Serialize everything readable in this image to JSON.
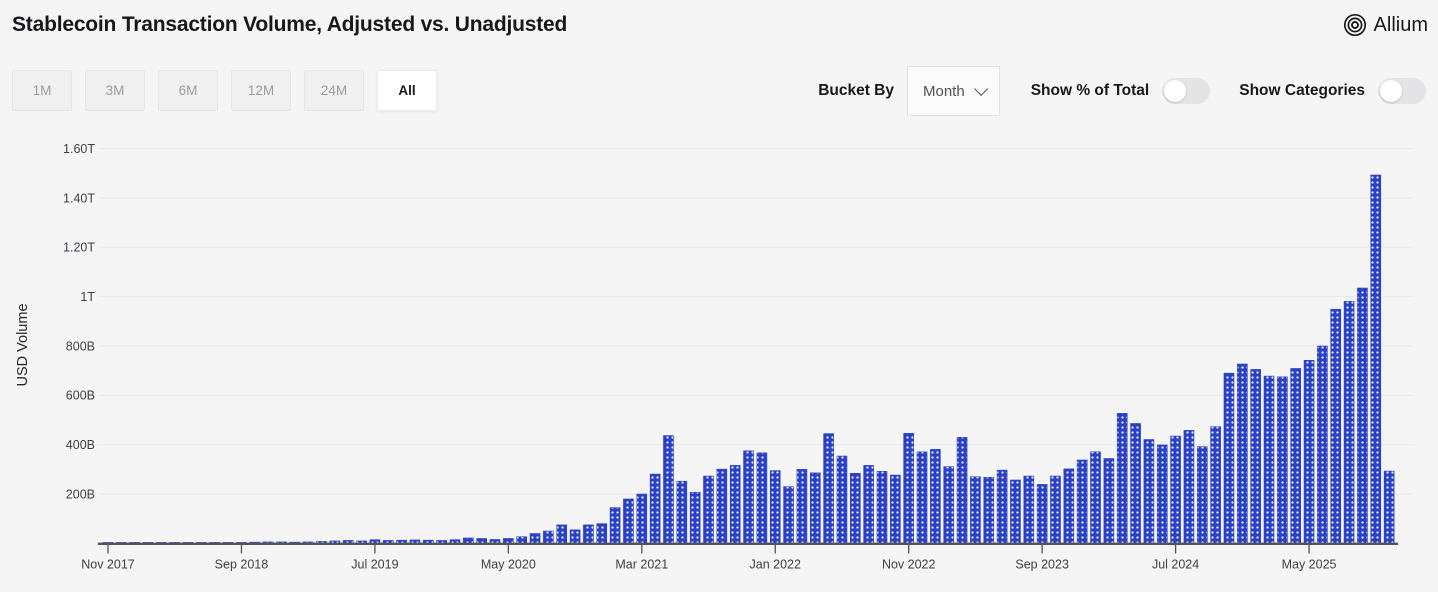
{
  "header": {
    "title": "Stablecoin Transaction Volume, Adjusted vs. Unadjusted",
    "brand": "Allium"
  },
  "toolbar": {
    "range_buttons": [
      {
        "label": "1M",
        "active": false
      },
      {
        "label": "3M",
        "active": false
      },
      {
        "label": "6M",
        "active": false
      },
      {
        "label": "12M",
        "active": false
      },
      {
        "label": "24M",
        "active": false
      },
      {
        "label": "All",
        "active": true
      }
    ],
    "bucket_by_label": "Bucket By",
    "bucket_value": "Month",
    "toggles": [
      {
        "label": "Show % of Total",
        "on": false
      },
      {
        "label": "Show Categories",
        "on": false
      }
    ]
  },
  "chart_data": {
    "type": "bar",
    "title": "Stablecoin Transaction Volume, Adjusted vs. Unadjusted",
    "xlabel": "",
    "ylabel": "USD Volume",
    "values_unit": "USD billions",
    "bar_color": "#2b41c5",
    "bar_pattern": "white-dots",
    "grid": true,
    "legend": false,
    "ylim": [
      0,
      1640
    ],
    "ytick_step": 200,
    "ytick_labels": [
      "200B",
      "400B",
      "600B",
      "800B",
      "1T",
      "1.20T",
      "1.40T",
      "1.60T"
    ],
    "xtick_every": 10,
    "xtick_labels": [
      "Nov 2017",
      "Sep 2018",
      "Jul 2019",
      "May 2020",
      "Mar 2021",
      "Jan 2022",
      "Nov 2022",
      "Sep 2023",
      "Jul 2024",
      "May 2025"
    ],
    "categories": [
      "Nov 2017",
      "Dec 2017",
      "Jan 2018",
      "Feb 2018",
      "Mar 2018",
      "Apr 2018",
      "May 2018",
      "Jun 2018",
      "Jul 2018",
      "Aug 2018",
      "Sep 2018",
      "Oct 2018",
      "Nov 2018",
      "Dec 2018",
      "Jan 2019",
      "Feb 2019",
      "Mar 2019",
      "Apr 2019",
      "May 2019",
      "Jun 2019",
      "Jul 2019",
      "Aug 2019",
      "Sep 2019",
      "Oct 2019",
      "Nov 2019",
      "Dec 2019",
      "Jan 2020",
      "Feb 2020",
      "Mar 2020",
      "Apr 2020",
      "May 2020",
      "Jun 2020",
      "Jul 2020",
      "Aug 2020",
      "Sep 2020",
      "Oct 2020",
      "Nov 2020",
      "Dec 2020",
      "Jan 2021",
      "Feb 2021",
      "Mar 2021",
      "Apr 2021",
      "May 2021",
      "Jun 2021",
      "Jul 2021",
      "Aug 2021",
      "Sep 2021",
      "Oct 2021",
      "Nov 2021",
      "Dec 2021",
      "Jan 2022",
      "Feb 2022",
      "Mar 2022",
      "Apr 2022",
      "May 2022",
      "Jun 2022",
      "Jul 2022",
      "Aug 2022",
      "Sep 2022",
      "Oct 2022",
      "Nov 2022",
      "Dec 2022",
      "Jan 2023",
      "Feb 2023",
      "Mar 2023",
      "Apr 2023",
      "May 2023",
      "Jun 2023",
      "Jul 2023",
      "Aug 2023",
      "Sep 2023",
      "Oct 2023",
      "Nov 2023",
      "Dec 2023",
      "Jan 2024",
      "Feb 2024",
      "Mar 2024",
      "Apr 2024",
      "May 2024",
      "Jun 2024",
      "Jul 2024",
      "Aug 2024",
      "Sep 2024",
      "Oct 2024",
      "Nov 2024",
      "Dec 2024",
      "Jan 2025",
      "Feb 2025",
      "Mar 2025",
      "Apr 2025",
      "May 2025",
      "Jun 2025",
      "Jul 2025",
      "Aug 2025",
      "Sep 2025",
      "Oct 2025",
      "Nov 2025"
    ],
    "values": [
      1,
      2,
      2,
      2,
      2,
      2,
      3,
      3,
      3,
      3,
      4,
      5,
      6,
      6,
      5,
      6,
      8,
      10,
      12,
      10,
      15,
      12,
      13,
      14,
      13,
      12,
      15,
      22,
      20,
      16,
      20,
      27,
      40,
      50,
      75,
      55,
      75,
      80,
      145,
      180,
      200,
      281,
      437,
      252,
      207,
      273,
      301,
      316,
      375,
      367,
      295,
      230,
      300,
      286,
      445,
      354,
      284,
      316,
      292,
      277,
      446,
      371,
      381,
      311,
      430,
      270,
      268,
      297,
      257,
      273,
      239,
      273,
      302,
      338,
      371,
      344,
      527,
      486,
      421,
      399,
      435,
      458,
      392,
      473,
      690,
      727,
      705,
      678,
      675,
      709,
      742,
      800,
      949,
      981,
      1035,
      1493,
      293
    ]
  }
}
